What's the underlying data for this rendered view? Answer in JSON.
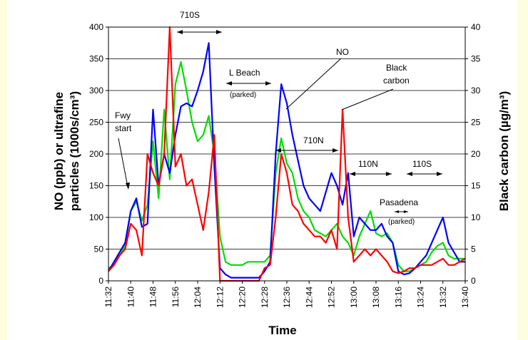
{
  "chart_data": {
    "type": "line",
    "xlabel": "Time",
    "ylabel_left": "NO (ppb) or ultrafine particles (1000s/cm³)",
    "ylabel_left_lines": [
      "NO (ppb) or ultrafine",
      "particles (1000s/cm³)"
    ],
    "ylabel_right": "Black carbon (µg/m³)",
    "xlim": [
      "11:32",
      "13:40"
    ],
    "ylim_left": [
      0,
      400
    ],
    "ylim_right": [
      0,
      40
    ],
    "grid": "horizontal",
    "x_ticks": [
      "11:32",
      "11:40",
      "11:48",
      "11:56",
      "12:04",
      "12:12",
      "12:20",
      "12:28",
      "12:36",
      "12:44",
      "12:52",
      "13:00",
      "13:08",
      "13:16",
      "13:24",
      "13:32",
      "13:40"
    ],
    "y_ticks_left": [
      "0",
      "50",
      "100",
      "150",
      "200",
      "250",
      "300",
      "350",
      "400"
    ],
    "y_ticks_right": [
      "0",
      "5",
      "10",
      "15",
      "20",
      "25",
      "30",
      "35",
      "40"
    ],
    "x": [
      "11:32",
      "11:34",
      "11:36",
      "11:38",
      "11:40",
      "11:42",
      "11:44",
      "11:46",
      "11:48",
      "11:50",
      "11:52",
      "11:54",
      "11:56",
      "11:58",
      "12:00",
      "12:02",
      "12:04",
      "12:06",
      "12:08",
      "12:10",
      "12:12",
      "12:14",
      "12:16",
      "12:18",
      "12:20",
      "12:22",
      "12:24",
      "12:26",
      "12:28",
      "12:30",
      "12:32",
      "12:34",
      "12:36",
      "12:38",
      "12:40",
      "12:42",
      "12:44",
      "12:46",
      "12:48",
      "12:50",
      "12:52",
      "12:54",
      "12:56",
      "12:58",
      "13:00",
      "13:02",
      "13:04",
      "13:06",
      "13:08",
      "13:10",
      "13:12",
      "13:14",
      "13:16",
      "13:18",
      "13:20",
      "13:22",
      "13:24",
      "13:26",
      "13:28",
      "13:30",
      "13:32",
      "13:34",
      "13:36",
      "13:38",
      "13:40"
    ],
    "series": [
      {
        "name": "NO",
        "color": "#0000ff",
        "axis": "left",
        "values": [
          15,
          30,
          45,
          60,
          110,
          130,
          85,
          90,
          270,
          150,
          200,
          170,
          230,
          275,
          280,
          275,
          300,
          330,
          375,
          180,
          20,
          10,
          5,
          5,
          5,
          5,
          5,
          5,
          15,
          30,
          200,
          310,
          280,
          230,
          190,
          150,
          130,
          120,
          110,
          140,
          170,
          150,
          120,
          170,
          70,
          100,
          90,
          80,
          80,
          90,
          70,
          60,
          15,
          10,
          12,
          20,
          30,
          40,
          60,
          80,
          100,
          60,
          45,
          30,
          30
        ]
      },
      {
        "name": "Ultrafine particles",
        "color": "#00dd00",
        "axis": "left",
        "values": [
          20,
          25,
          40,
          55,
          110,
          125,
          95,
          120,
          220,
          130,
          270,
          160,
          310,
          345,
          300,
          250,
          220,
          230,
          260,
          200,
          70,
          30,
          25,
          25,
          25,
          30,
          30,
          30,
          30,
          40,
          170,
          225,
          185,
          170,
          130,
          110,
          100,
          80,
          75,
          70,
          80,
          90,
          70,
          60,
          40,
          70,
          90,
          110,
          75,
          70,
          75,
          60,
          25,
          15,
          15,
          20,
          25,
          30,
          45,
          55,
          60,
          40,
          35,
          35,
          35
        ]
      },
      {
        "name": "Black carbon",
        "color": "#ff0000",
        "axis": "right",
        "values": [
          1.5,
          2.5,
          4,
          5,
          9,
          8,
          4,
          20,
          17,
          15,
          20,
          40,
          18,
          20,
          15,
          16,
          12,
          8,
          14,
          23,
          0,
          0,
          0,
          0,
          0,
          0,
          0,
          0,
          2,
          2.5,
          10,
          20,
          17,
          12,
          11,
          9,
          8,
          7,
          7,
          6,
          8,
          5,
          27,
          10,
          3,
          4,
          5,
          4,
          5,
          4,
          3,
          1.5,
          1.2,
          1.5,
          2,
          2,
          2.5,
          2.5,
          2.5,
          3,
          3.5,
          2.5,
          2.5,
          3,
          3.5
        ]
      }
    ],
    "annotations": {
      "fwy_start_1": "Fwy",
      "fwy_start_2": "start",
      "s710": "710S",
      "lbeach": "L Beach",
      "lbeach_parked": "(parked)",
      "no_label": "NO",
      "bc_label_1": "Black",
      "bc_label_2": "carbon",
      "n710": "710N",
      "n110": "110N",
      "s110": "110S",
      "pasadena": "Pasadena",
      "pasadena_parked": "(parked)"
    }
  }
}
